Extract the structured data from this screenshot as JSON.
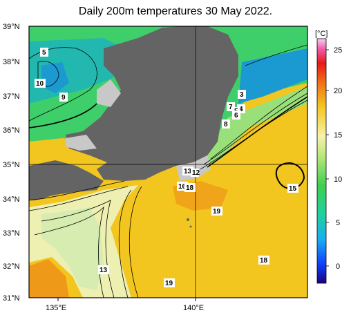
{
  "title": "Daily 200m temperatures 30 May 2022.",
  "lat_labels": [
    "39°N",
    "38°N",
    "37°N",
    "36°N",
    "35°N",
    "34°N",
    "33°N",
    "32°N",
    "31°N"
  ],
  "lon_labels": [
    "135°E",
    "140°E"
  ],
  "colorbar": {
    "unit_label": "[°C]",
    "ticks": [
      "25",
      "20",
      "15",
      "10",
      "5",
      "0"
    ],
    "range": [
      -2,
      26
    ]
  },
  "contour_labels": [
    "5",
    "10",
    "9",
    "3",
    "4",
    "7",
    "5",
    "6",
    "8",
    "13",
    "12",
    "16",
    "18",
    "15",
    "19",
    "13",
    "18",
    "19"
  ],
  "colors": {
    "land": "#646464",
    "sea_shallow": "#c8c8c8",
    "warm": "#f2c21e",
    "orange": "#e8901a",
    "pale": "#eef0b0",
    "green": "#58d07a",
    "dark_green": "#1c9a5e",
    "frame": "#000000"
  }
}
